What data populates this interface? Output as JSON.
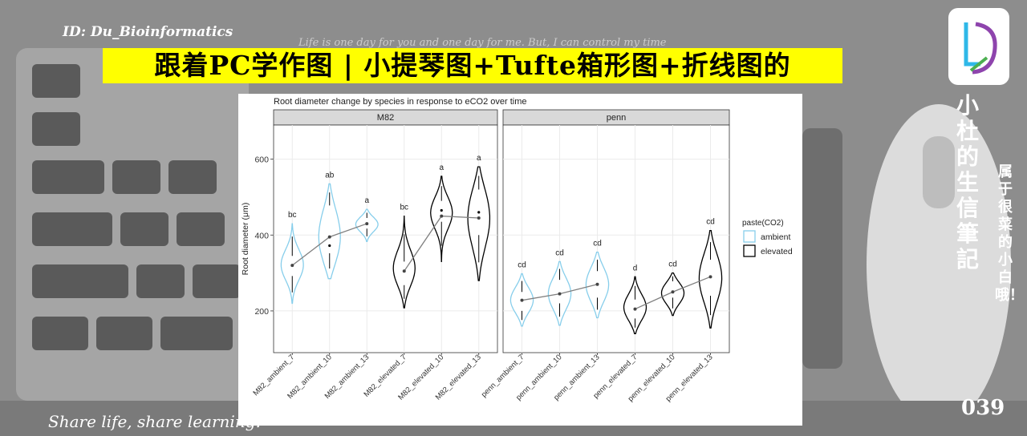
{
  "page": {
    "handle": "ID: Du_Bioinformatics",
    "quote": "Life is one day for you and one day for me. But, I can control my time",
    "banner_title": "跟着PC学作图 | 小提琴图+Tufte箱形图+折线图的",
    "vertical_title": "小杜的生信筆記",
    "vertical_subtitle": "属于很菜的小白哦！",
    "issue_number": "039",
    "footer": "Share life, share learning.",
    "colors": {
      "banner": "#ffff00",
      "ambient": "#87ceeb",
      "elevated": "#000000",
      "line": "#808080"
    }
  },
  "chart_data": {
    "type": "violin",
    "title": "Root diameter change by species in response to eCO2 over time",
    "xlabel": "",
    "ylabel": "Root diameter (μm)",
    "ylim": [
      90,
      690
    ],
    "yticks": [
      200,
      400,
      600
    ],
    "grid": true,
    "legend": {
      "title": "paste(CO2)",
      "entries": [
        "ambient",
        "elevated"
      ],
      "position": "right"
    },
    "facets": [
      {
        "label": "M82",
        "groups": [
          {
            "name": "M82_ambient_7",
            "co2": "ambient",
            "min": 220,
            "q1": 292,
            "median": 320,
            "q3": 345,
            "max": 430,
            "mean": 320,
            "letter": "bc"
          },
          {
            "name": "M82_ambient_10",
            "co2": "ambient",
            "min": 285,
            "q1": 352,
            "median": 372,
            "q3": 478,
            "max": 535,
            "mean": 395,
            "letter": "ab"
          },
          {
            "name": "M82_ambient_13",
            "co2": "ambient",
            "min": 383,
            "q1": 417,
            "median": 430,
            "q3": 445,
            "max": 468,
            "mean": 430,
            "letter": "a"
          },
          {
            "name": "M82_elevated_7",
            "co2": "elevated",
            "min": 208,
            "q1": 268,
            "median": 305,
            "q3": 330,
            "max": 450,
            "mean": 305,
            "letter": "bc"
          },
          {
            "name": "M82_elevated_10",
            "co2": "elevated",
            "min": 330,
            "q1": 435,
            "median": 465,
            "q3": 490,
            "max": 555,
            "mean": 450,
            "letter": "a"
          },
          {
            "name": "M82_elevated_13",
            "co2": "elevated",
            "min": 280,
            "q1": 400,
            "median": 460,
            "q3": 520,
            "max": 580,
            "mean": 445,
            "letter": "a"
          }
        ]
      },
      {
        "label": "penn",
        "groups": [
          {
            "name": "penn_ambient_7",
            "co2": "ambient",
            "min": 160,
            "q1": 200,
            "median": 228,
            "q3": 250,
            "max": 298,
            "mean": 228,
            "letter": "cd"
          },
          {
            "name": "penn_ambient_10",
            "co2": "ambient",
            "min": 162,
            "q1": 220,
            "median": 245,
            "q3": 282,
            "max": 330,
            "mean": 245,
            "letter": "cd"
          },
          {
            "name": "penn_ambient_13",
            "co2": "ambient",
            "min": 182,
            "q1": 235,
            "median": 270,
            "q3": 305,
            "max": 355,
            "mean": 270,
            "letter": "cd"
          },
          {
            "name": "penn_elevated_7",
            "co2": "elevated",
            "min": 140,
            "q1": 180,
            "median": 205,
            "q3": 230,
            "max": 290,
            "mean": 205,
            "letter": "d"
          },
          {
            "name": "penn_elevated_10",
            "co2": "elevated",
            "min": 188,
            "q1": 235,
            "median": 250,
            "q3": 278,
            "max": 300,
            "mean": 250,
            "letter": "cd"
          },
          {
            "name": "penn_elevated_13",
            "co2": "elevated",
            "min": 155,
            "q1": 240,
            "median": 290,
            "q3": 335,
            "max": 412,
            "mean": 290,
            "letter": "cd"
          }
        ]
      }
    ]
  }
}
